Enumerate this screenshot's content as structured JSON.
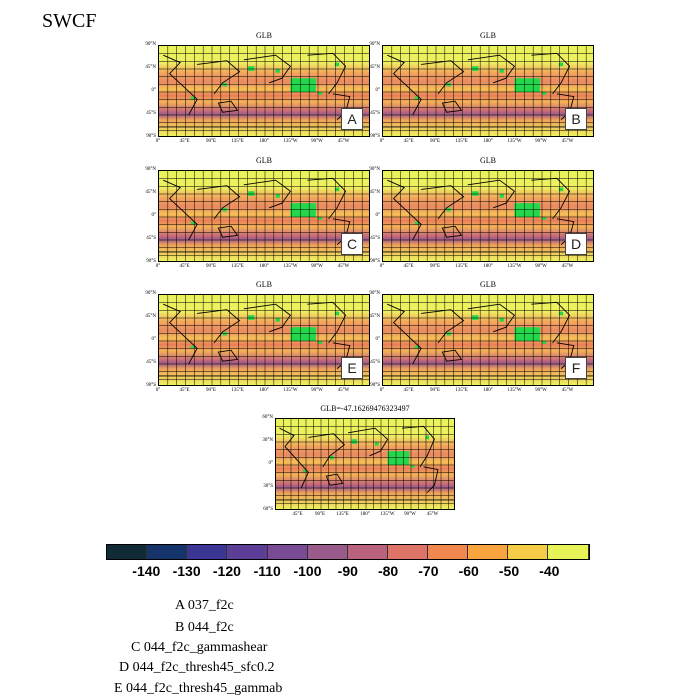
{
  "title": "SWCF",
  "panel_title": "GLB",
  "mean_title": "GLB=-47.16269476323497",
  "panels": [
    {
      "letter": "A"
    },
    {
      "letter": "B"
    },
    {
      "letter": "C"
    },
    {
      "letter": "D"
    },
    {
      "letter": "E"
    },
    {
      "letter": "F"
    }
  ],
  "lat_labels": [
    "90°N",
    "45°N",
    "0°",
    "45°S",
    "90°S"
  ],
  "lon_labels": [
    "0°",
    "45°E",
    "90°E",
    "135°E",
    "180°",
    "135°W",
    "90°W",
    "45°W"
  ],
  "mean_lat_labels": [
    "60°N",
    "30°N",
    "0°",
    "30°S",
    "60°S"
  ],
  "mean_lon_labels": [
    "45°E",
    "90°E",
    "135°E",
    "180°",
    "135°W",
    "90°W",
    "45°W"
  ],
  "colorbar": {
    "colors": [
      "#102a36",
      "#15346a",
      "#3b3696",
      "#5d3e96",
      "#7a4a94",
      "#9a5a8c",
      "#b9627e",
      "#de7468",
      "#f0874f",
      "#f8a540",
      "#f5cc48",
      "#e8f35a"
    ],
    "labels": [
      "-140",
      "-130",
      "-120",
      "-110",
      "-100",
      "-90",
      "-80",
      "-70",
      "-60",
      "-50",
      "-40"
    ]
  },
  "legend": [
    "A  037_f2c",
    "B  044_f2c",
    "C  044_f2c_gammashear",
    "D  044_f2c_thresh45_sfc0.2",
    "E  044_f2c_thresh45_gammab"
  ],
  "chart_data": {
    "type": "heatmap",
    "title": "SWCF",
    "subplot_titles": [
      "GLB",
      "GLB",
      "GLB",
      "GLB",
      "GLB",
      "GLB",
      "GLB=-47.16269476323497"
    ],
    "subplot_letters": [
      "A",
      "B",
      "C",
      "D",
      "E",
      "F"
    ],
    "global_mean": -47.16269476323497,
    "colorbar_ticks": [
      -140,
      -130,
      -120,
      -110,
      -100,
      -90,
      -80,
      -70,
      -60,
      -50,
      -40
    ],
    "xlabel": "",
    "ylabel": ""
  }
}
